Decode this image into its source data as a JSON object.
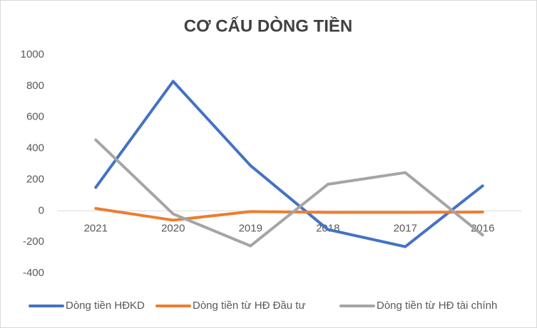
{
  "chart_data": {
    "type": "line",
    "title": "CƠ CẤU DÒNG TIỀN",
    "categories": [
      "2021",
      "2020",
      "2019",
      "2018",
      "2017",
      "2016"
    ],
    "series": [
      {
        "name": "Dòng tiền HĐKD",
        "color": "#4472c4",
        "values": [
          150,
          830,
          290,
          -120,
          -230,
          160
        ]
      },
      {
        "name": "Dòng tiền từ HĐ Đầu tư",
        "color": "#ed7d31",
        "values": [
          15,
          -60,
          -5,
          -10,
          -10,
          -8
        ]
      },
      {
        "name": "Dòng tiền từ HĐ tài chính",
        "color": "#a5a5a5",
        "values": [
          455,
          -20,
          -225,
          170,
          245,
          -155
        ]
      }
    ],
    "ylim": [
      -400,
      1000
    ],
    "yticks": [
      -400,
      -200,
      0,
      200,
      400,
      600,
      800,
      1000
    ],
    "grid": false,
    "legend": "bottom"
  }
}
